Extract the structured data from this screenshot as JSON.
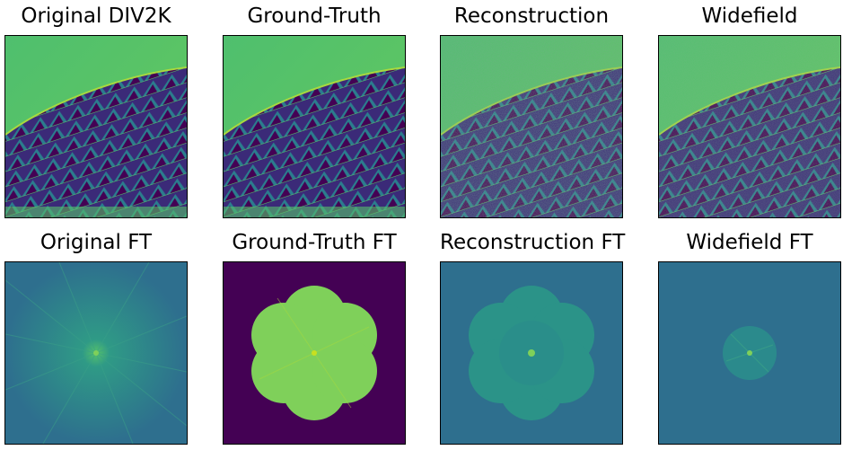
{
  "figure": {
    "panels": [
      {
        "title": "Original DIV2K",
        "kind": "image",
        "noise": "none"
      },
      {
        "title": "Ground-Truth",
        "kind": "image",
        "noise": "none"
      },
      {
        "title": "Reconstruction",
        "kind": "image",
        "noise": "heavy"
      },
      {
        "title": "Widefield",
        "kind": "image",
        "noise": "medium"
      },
      {
        "title": "Original FT",
        "kind": "spectrum",
        "support": "full"
      },
      {
        "title": "Ground-Truth FT",
        "kind": "spectrum",
        "support": "six-lobe-flower"
      },
      {
        "title": "Reconstruction FT",
        "kind": "spectrum",
        "support": "six-lobe-flower-faint"
      },
      {
        "title": "Widefield FT",
        "kind": "spectrum",
        "support": "small-disc"
      }
    ],
    "colormap": "viridis",
    "colors": {
      "dark_purple": "#440154",
      "navy": "#3b2a78",
      "teal": "#2b7d8e",
      "green": "#56c26a",
      "yellow_green": "#a8d93e",
      "ft_background": "#2e6f8e",
      "flower_fill": "#7fd05a"
    }
  }
}
